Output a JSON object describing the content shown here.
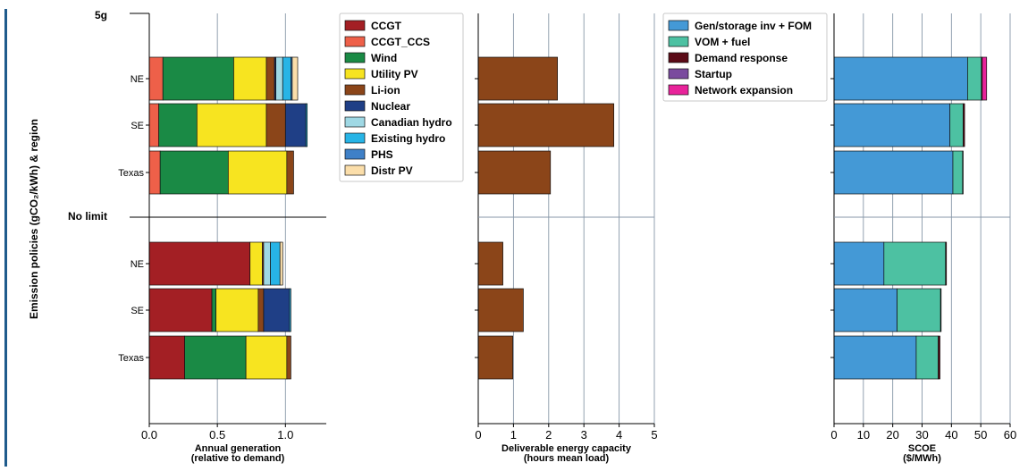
{
  "ylabel": "Emission policies (gCO₂/kWh) & region",
  "group_labels": [
    "5g",
    "No limit"
  ],
  "regions": [
    "NE",
    "SE",
    "Texas"
  ],
  "colors": {
    "CCGT": "#a31f24",
    "CCGT_CCS": "#ee6049",
    "Wind": "#1a8a45",
    "Utility PV": "#f7e420",
    "Li-ion": "#8b4519",
    "Nuclear": "#1f3f86",
    "Canadian hydro": "#9fd8e4",
    "Existing hydro": "#27b4e6",
    "PHS": "#3f80c7",
    "Distr PV": "#fbdeaa",
    "Gen/storage inv + FOM": "#4499d6",
    "VOM + fuel": "#4dc1a2",
    "Demand response": "#5b0b17",
    "Startup": "#7a4b9e",
    "Network expansion": "#e8239a"
  },
  "legends": {
    "generation": [
      "CCGT",
      "CCGT_CCS",
      "Wind",
      "Utility PV",
      "Li-ion",
      "Nuclear",
      "Canadian hydro",
      "Existing hydro",
      "PHS",
      "Distr PV"
    ],
    "cost": [
      "Gen/storage inv + FOM",
      "VOM + fuel",
      "Demand response",
      "Startup",
      "Network expansion"
    ]
  },
  "chart_data": [
    {
      "type": "bar",
      "orientation": "horizontal",
      "stacked": true,
      "xlabel": "Annual generation\n(relative to demand)",
      "xticks": [
        "0.0",
        "0.5",
        "1.0"
      ],
      "xlim": [
        0,
        1.3
      ],
      "categories": [
        "5g NE",
        "5g SE",
        "5g Texas",
        "No limit NE",
        "No limit SE",
        "No limit Texas"
      ],
      "series": [
        {
          "name": "CCGT",
          "values": [
            0,
            0,
            0,
            0.74,
            0.46,
            0.26
          ]
        },
        {
          "name": "CCGT_CCS",
          "values": [
            0.1,
            0.07,
            0.08,
            0,
            0,
            0
          ]
        },
        {
          "name": "Wind",
          "values": [
            0.52,
            0.28,
            0.5,
            0,
            0.03,
            0.45
          ]
        },
        {
          "name": "Utility PV",
          "values": [
            0.24,
            0.51,
            0.43,
            0.09,
            0.31,
            0.3
          ]
        },
        {
          "name": "Li-ion",
          "values": [
            0.06,
            0.14,
            0.05,
            0.01,
            0.04,
            0.03
          ]
        },
        {
          "name": "Nuclear",
          "values": [
            0.01,
            0.15,
            0,
            0,
            0.19,
            0
          ]
        },
        {
          "name": "Canadian hydro",
          "values": [
            0.05,
            0,
            0,
            0.05,
            0,
            0
          ]
        },
        {
          "name": "Existing hydro",
          "values": [
            0.06,
            0.01,
            0,
            0.07,
            0.01,
            0
          ]
        },
        {
          "name": "PHS",
          "values": [
            0.01,
            0,
            0,
            0,
            0,
            0
          ]
        },
        {
          "name": "Distr PV",
          "values": [
            0.04,
            0,
            0,
            0.02,
            0,
            0
          ]
        }
      ]
    },
    {
      "type": "bar",
      "orientation": "horizontal",
      "xlabel": "Deliverable energy capacity\n(hours mean load)",
      "xticks": [
        "0",
        "1",
        "2",
        "3",
        "4",
        "5"
      ],
      "xlim": [
        0,
        5
      ],
      "categories": [
        "5g NE",
        "5g SE",
        "5g Texas",
        "No limit NE",
        "No limit SE",
        "No limit Texas"
      ],
      "series": [
        {
          "name": "Li-ion",
          "values": [
            2.25,
            3.85,
            2.05,
            0.7,
            1.28,
            0.98
          ]
        }
      ]
    },
    {
      "type": "bar",
      "orientation": "horizontal",
      "stacked": true,
      "xlabel": "SCOE\n($/MWh)",
      "xticks": [
        "0",
        "10",
        "20",
        "30",
        "40",
        "50",
        "60"
      ],
      "xlim": [
        0,
        60
      ],
      "categories": [
        "5g NE",
        "5g SE",
        "5g Texas",
        "No limit NE",
        "No limit SE",
        "No limit Texas"
      ],
      "series": [
        {
          "name": "Gen/storage inv + FOM",
          "values": [
            45.5,
            39.5,
            40.5,
            17.0,
            21.5,
            28.0
          ]
        },
        {
          "name": "VOM + fuel",
          "values": [
            4.7,
            4.5,
            3.3,
            21.0,
            14.8,
            7.5
          ]
        },
        {
          "name": "Demand response",
          "values": [
            0.3,
            0.5,
            0.2,
            0.3,
            0.2,
            0.6
          ]
        },
        {
          "name": "Startup",
          "values": [
            0,
            0,
            0,
            0,
            0,
            0
          ]
        },
        {
          "name": "Network expansion",
          "values": [
            1.5,
            0,
            0,
            0,
            0,
            0
          ]
        }
      ]
    }
  ]
}
